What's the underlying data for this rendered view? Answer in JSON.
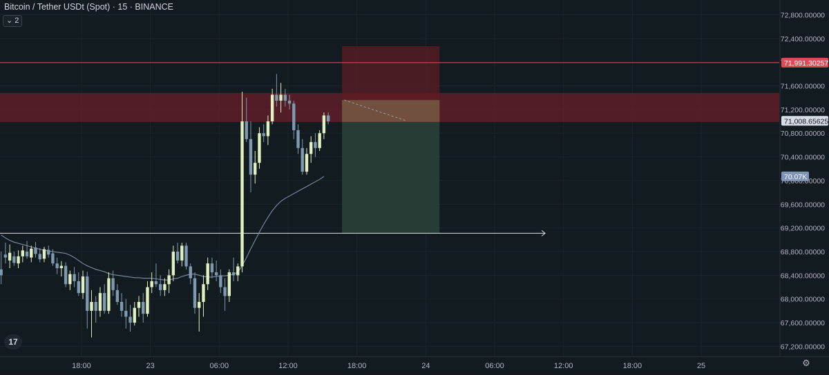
{
  "header": {
    "symbol_title": "Bitcoin / Tether USDt (Spot) · 15 · BINANCE",
    "collapse_label": "⌄ 2"
  },
  "footer": {
    "logo_text": "17",
    "settings_icon": "⚙"
  },
  "colors": {
    "background": "#121b20",
    "up_candle": "#e1f0c0",
    "down_candle": "#7f9ab0",
    "moving_average": "#7e8ea6",
    "resistance_zone": "#7a1f2a",
    "short_stop_zone": "#5e1c24",
    "short_target_zone": "#2a4238",
    "red_line": "#e04a56",
    "support_line": "#dfe3e8",
    "price_tag_red": "#e04a56",
    "price_tag_current": "#d7dbe3",
    "price_tag_ma": "#7f94b8"
  },
  "chart_data": {
    "type": "candlestick",
    "title": "Bitcoin / Tether USDt (Spot) · 15 · BINANCE",
    "y_axis": {
      "ticks": [
        "72,800.00000",
        "72,400.00000",
        "72,000.00000",
        "71,600.00000",
        "71,200.00000",
        "70,800.00000",
        "70,400.00000",
        "70,000.00000",
        "69,600.00000",
        "69,200.00000",
        "68,800.00000",
        "68,400.00000",
        "68,000.00000",
        "67,600.00000",
        "67,200.00000"
      ],
      "tick_values": [
        72800,
        72400,
        72000,
        71600,
        71200,
        70800,
        70400,
        70000,
        69600,
        69200,
        68800,
        68400,
        68000,
        67600,
        67200
      ],
      "range": [
        67030,
        73050
      ]
    },
    "x_axis": {
      "ticks": [
        "18:00",
        "23",
        "06:00",
        "12:00",
        "18:00",
        "24",
        "06:00",
        "12:00",
        "18:00",
        "25"
      ],
      "tick_offsets_hours": [
        0,
        6,
        12,
        18,
        24,
        30,
        36,
        42,
        48,
        54
      ],
      "range_hours": [
        -7.1,
        60.8
      ]
    },
    "price_labels": [
      {
        "label": "71,991.30257",
        "value": 71991.30257,
        "style": "red"
      },
      {
        "label": "71,008.65625",
        "value": 71008.65625,
        "style": "current"
      },
      {
        "label": "70.07K",
        "value": 70070,
        "style": "ma"
      }
    ],
    "horizontal_lines": [
      {
        "value": 71991.3,
        "style": "red"
      },
      {
        "value": 69110,
        "style": "support",
        "x_end_hours": 40.4
      }
    ],
    "zones": [
      {
        "name": "resistance",
        "y_top": 71480,
        "y_bottom": 70990,
        "x_start_hours": -7.1,
        "x_end_hours": 60.8
      },
      {
        "name": "short-stop",
        "y_top": 72270,
        "y_bottom": 71360,
        "x_start_hours": 22.7,
        "x_end_hours": 31.2
      },
      {
        "name": "short-entry",
        "y_top": 71360,
        "y_bottom": 70990,
        "x_start_hours": 22.7,
        "x_end_hours": 31.2
      },
      {
        "name": "short-target",
        "y_top": 70990,
        "y_bottom": 69110,
        "x_start_hours": 22.7,
        "x_end_hours": 31.2
      }
    ],
    "candles": [
      {
        "o": 68500,
        "h": 68800,
        "l": 68250,
        "c": 68400
      },
      {
        "o": 68750,
        "h": 68950,
        "l": 68600,
        "c": 68700
      },
      {
        "o": 68650,
        "h": 68920,
        "l": 68520,
        "c": 68780
      },
      {
        "o": 68720,
        "h": 68800,
        "l": 68560,
        "c": 68610
      },
      {
        "o": 68600,
        "h": 68820,
        "l": 68520,
        "c": 68720
      },
      {
        "o": 68720,
        "h": 68900,
        "l": 68620,
        "c": 68820
      },
      {
        "o": 68800,
        "h": 68980,
        "l": 68680,
        "c": 68720
      },
      {
        "o": 68700,
        "h": 68900,
        "l": 68620,
        "c": 68850
      },
      {
        "o": 68870,
        "h": 68960,
        "l": 68700,
        "c": 68760
      },
      {
        "o": 68760,
        "h": 68860,
        "l": 68620,
        "c": 68670
      },
      {
        "o": 68680,
        "h": 68880,
        "l": 68620,
        "c": 68840
      },
      {
        "o": 68830,
        "h": 68900,
        "l": 68700,
        "c": 68750
      },
      {
        "o": 68770,
        "h": 68840,
        "l": 68560,
        "c": 68600
      },
      {
        "o": 68600,
        "h": 68700,
        "l": 68420,
        "c": 68520
      },
      {
        "o": 68520,
        "h": 68640,
        "l": 68380,
        "c": 68560
      },
      {
        "o": 68560,
        "h": 68620,
        "l": 68200,
        "c": 68250
      },
      {
        "o": 68250,
        "h": 68480,
        "l": 68150,
        "c": 68420
      },
      {
        "o": 68420,
        "h": 68540,
        "l": 68200,
        "c": 68300
      },
      {
        "o": 68300,
        "h": 68450,
        "l": 68050,
        "c": 68100
      },
      {
        "o": 68100,
        "h": 68480,
        "l": 68000,
        "c": 68380
      },
      {
        "o": 68380,
        "h": 68460,
        "l": 67500,
        "c": 67800
      },
      {
        "o": 67800,
        "h": 68150,
        "l": 67350,
        "c": 67950
      },
      {
        "o": 67950,
        "h": 68050,
        "l": 67600,
        "c": 67800
      },
      {
        "o": 67800,
        "h": 68200,
        "l": 67700,
        "c": 68100
      },
      {
        "o": 68100,
        "h": 68250,
        "l": 67750,
        "c": 67800
      },
      {
        "o": 67800,
        "h": 68450,
        "l": 67750,
        "c": 68350
      },
      {
        "o": 68350,
        "h": 68480,
        "l": 68050,
        "c": 68150
      },
      {
        "o": 68150,
        "h": 68250,
        "l": 67900,
        "c": 67950
      },
      {
        "o": 67950,
        "h": 68100,
        "l": 67700,
        "c": 67800
      },
      {
        "o": 67800,
        "h": 68000,
        "l": 67500,
        "c": 67700
      },
      {
        "o": 67700,
        "h": 67900,
        "l": 67450,
        "c": 67600
      },
      {
        "o": 67600,
        "h": 67950,
        "l": 67550,
        "c": 67850
      },
      {
        "o": 67850,
        "h": 68050,
        "l": 67700,
        "c": 67950
      },
      {
        "o": 67950,
        "h": 68100,
        "l": 67600,
        "c": 67750
      },
      {
        "o": 67750,
        "h": 68300,
        "l": 67700,
        "c": 68200
      },
      {
        "o": 68200,
        "h": 68450,
        "l": 68100,
        "c": 68300
      },
      {
        "o": 68300,
        "h": 68600,
        "l": 68200,
        "c": 68250
      },
      {
        "o": 68250,
        "h": 68400,
        "l": 68050,
        "c": 68150
      },
      {
        "o": 68150,
        "h": 68350,
        "l": 68050,
        "c": 68250
      },
      {
        "o": 68250,
        "h": 68500,
        "l": 68100,
        "c": 68400
      },
      {
        "o": 68400,
        "h": 68900,
        "l": 68300,
        "c": 68800
      },
      {
        "o": 68800,
        "h": 68950,
        "l": 68600,
        "c": 68650
      },
      {
        "o": 68650,
        "h": 68950,
        "l": 68550,
        "c": 68900
      },
      {
        "o": 68900,
        "h": 68950,
        "l": 68500,
        "c": 68550
      },
      {
        "o": 68550,
        "h": 68600,
        "l": 68250,
        "c": 68350
      },
      {
        "o": 68350,
        "h": 68450,
        "l": 67750,
        "c": 67850
      },
      {
        "o": 67850,
        "h": 68100,
        "l": 67450,
        "c": 67950
      },
      {
        "o": 67950,
        "h": 68400,
        "l": 67700,
        "c": 68250
      },
      {
        "o": 68250,
        "h": 68700,
        "l": 68150,
        "c": 68600
      },
      {
        "o": 68600,
        "h": 68700,
        "l": 68350,
        "c": 68450
      },
      {
        "o": 68450,
        "h": 68650,
        "l": 68300,
        "c": 68400
      },
      {
        "o": 68400,
        "h": 68500,
        "l": 68100,
        "c": 68200
      },
      {
        "o": 68200,
        "h": 68350,
        "l": 67800,
        "c": 68050
      },
      {
        "o": 68050,
        "h": 68500,
        "l": 67950,
        "c": 68450
      },
      {
        "o": 68450,
        "h": 68700,
        "l": 68300,
        "c": 68400
      },
      {
        "o": 68400,
        "h": 68600,
        "l": 68300,
        "c": 68550
      },
      {
        "o": 68550,
        "h": 71500,
        "l": 68450,
        "c": 71000
      },
      {
        "o": 71000,
        "h": 71400,
        "l": 70650,
        "c": 70700
      },
      {
        "o": 70700,
        "h": 71000,
        "l": 69800,
        "c": 70100
      },
      {
        "o": 70100,
        "h": 70500,
        "l": 69950,
        "c": 70300
      },
      {
        "o": 70300,
        "h": 70900,
        "l": 70200,
        "c": 70800
      },
      {
        "o": 70800,
        "h": 70950,
        "l": 70650,
        "c": 70750
      },
      {
        "o": 70750,
        "h": 71100,
        "l": 70600,
        "c": 71000
      },
      {
        "o": 71000,
        "h": 71550,
        "l": 70950,
        "c": 71450
      },
      {
        "o": 71450,
        "h": 71800,
        "l": 71250,
        "c": 71350
      },
      {
        "o": 71350,
        "h": 71650,
        "l": 71150,
        "c": 71450
      },
      {
        "o": 71450,
        "h": 71550,
        "l": 71250,
        "c": 71350
      },
      {
        "o": 71350,
        "h": 71450,
        "l": 71200,
        "c": 71300
      },
      {
        "o": 71300,
        "h": 71350,
        "l": 70700,
        "c": 70850
      },
      {
        "o": 70850,
        "h": 70950,
        "l": 70450,
        "c": 70550
      },
      {
        "o": 70550,
        "h": 70700,
        "l": 70100,
        "c": 70150
      },
      {
        "o": 70150,
        "h": 70550,
        "l": 70100,
        "c": 70450
      },
      {
        "o": 70450,
        "h": 70750,
        "l": 70300,
        "c": 70650
      },
      {
        "o": 70650,
        "h": 70800,
        "l": 70400,
        "c": 70550
      },
      {
        "o": 70550,
        "h": 70850,
        "l": 70500,
        "c": 70800
      },
      {
        "o": 70800,
        "h": 71150,
        "l": 70700,
        "c": 71100
      },
      {
        "o": 71100,
        "h": 71150,
        "l": 70950,
        "c": 71000
      }
    ],
    "candles_start_hours": -7.0,
    "candle_step_hours": 0.375,
    "moving_average": {
      "start_index": 0,
      "values": [
        69080,
        69030,
        68990,
        68960,
        68940,
        68920,
        68900,
        68880,
        68860,
        68840,
        68820,
        68810,
        68800,
        68790,
        68780,
        68770,
        68740,
        68700,
        68650,
        68600,
        68560,
        68530,
        68500,
        68480,
        68460,
        68430,
        68410,
        68400,
        68390,
        68380,
        68370,
        68360,
        68360,
        68350,
        68350,
        68350,
        68340,
        68330,
        68320,
        68320,
        68340,
        68350,
        68380,
        68400,
        68420,
        68420,
        68400,
        68380,
        68370,
        68370,
        68380,
        68390,
        68390,
        68400,
        68420,
        68450,
        68560,
        68700,
        68850,
        68990,
        69130,
        69260,
        69380,
        69490,
        69580,
        69650,
        69700,
        69740,
        69780,
        69820,
        69860,
        69900,
        69940,
        69980,
        70020,
        70070
      ]
    }
  }
}
